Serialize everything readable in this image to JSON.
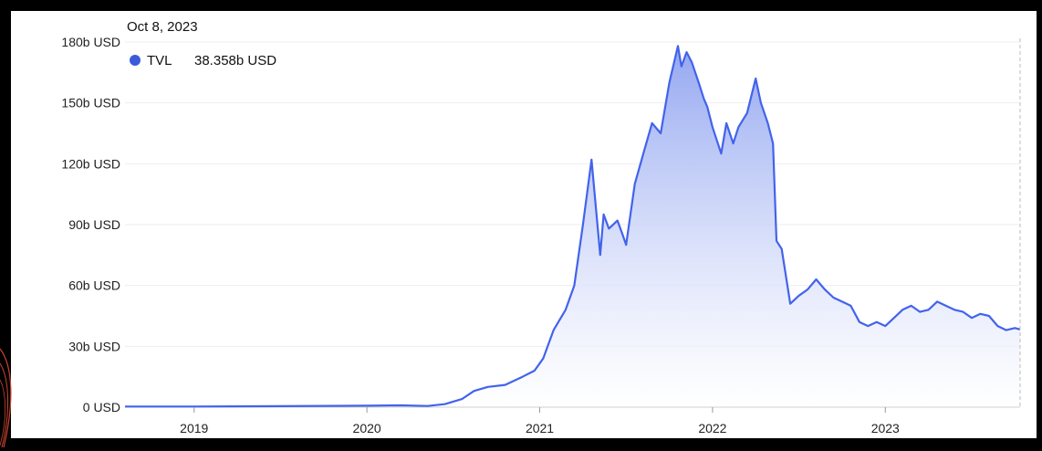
{
  "tooltip": {
    "date": "Oct 8, 2023",
    "series_name": "TVL",
    "value_label": "38.358b USD",
    "dot_color": "#3b5bdb"
  },
  "colors": {
    "line": "#4263eb",
    "fill_top": "#8ea2f0",
    "fill_bottom": "#ffffff",
    "grid": "#eeeeee",
    "background": "#000000",
    "card": "#ffffff"
  },
  "chart_data": {
    "type": "area",
    "xlabel": "",
    "ylabel": "",
    "xlim": [
      2018.6,
      2023.78
    ],
    "ylim": [
      0,
      180
    ],
    "y_ticks": [
      {
        "value": 0,
        "label": "0 USD"
      },
      {
        "value": 30,
        "label": "30b USD"
      },
      {
        "value": 60,
        "label": "60b USD"
      },
      {
        "value": 90,
        "label": "90b USD"
      },
      {
        "value": 120,
        "label": "120b USD"
      },
      {
        "value": 150,
        "label": "150b USD"
      },
      {
        "value": 180,
        "label": "180b USD"
      }
    ],
    "x_ticks": [
      {
        "value": 2019,
        "label": "2019"
      },
      {
        "value": 2020,
        "label": "2020"
      },
      {
        "value": 2021,
        "label": "2021"
      },
      {
        "value": 2022,
        "label": "2022"
      },
      {
        "value": 2023,
        "label": "2023"
      }
    ],
    "series": [
      {
        "name": "TVL",
        "x": [
          2018.6,
          2019.0,
          2019.5,
          2020.0,
          2020.2,
          2020.35,
          2020.45,
          2020.55,
          2020.62,
          2020.7,
          2020.8,
          2020.9,
          2020.97,
          2021.02,
          2021.08,
          2021.15,
          2021.2,
          2021.25,
          2021.3,
          2021.35,
          2021.37,
          2021.4,
          2021.45,
          2021.48,
          2021.5,
          2021.55,
          2021.6,
          2021.65,
          2021.7,
          2021.75,
          2021.8,
          2021.82,
          2021.85,
          2021.88,
          2021.92,
          2021.95,
          2021.97,
          2022.0,
          2022.05,
          2022.08,
          2022.12,
          2022.15,
          2022.2,
          2022.25,
          2022.28,
          2022.32,
          2022.35,
          2022.37,
          2022.4,
          2022.45,
          2022.5,
          2022.55,
          2022.6,
          2022.65,
          2022.7,
          2022.75,
          2022.8,
          2022.85,
          2022.9,
          2022.95,
          2023.0,
          2023.05,
          2023.1,
          2023.15,
          2023.2,
          2023.25,
          2023.3,
          2023.35,
          2023.4,
          2023.45,
          2023.5,
          2023.55,
          2023.6,
          2023.65,
          2023.7,
          2023.75,
          2023.78
        ],
        "values": [
          0.3,
          0.3,
          0.5,
          0.7,
          0.9,
          0.6,
          1.5,
          4,
          8,
          10,
          11,
          15,
          18,
          24,
          38,
          48,
          60,
          90,
          122,
          75,
          95,
          88,
          92,
          85,
          80,
          110,
          125,
          140,
          135,
          160,
          178,
          168,
          175,
          170,
          160,
          152,
          148,
          138,
          125,
          140,
          130,
          138,
          145,
          162,
          150,
          140,
          130,
          82,
          78,
          51,
          55,
          58,
          63,
          58,
          54,
          52,
          50,
          42,
          40,
          42,
          40,
          44,
          48,
          50,
          47,
          48,
          52,
          50,
          48,
          47,
          44,
          46,
          45,
          40,
          38,
          39,
          38.358
        ]
      }
    ]
  }
}
